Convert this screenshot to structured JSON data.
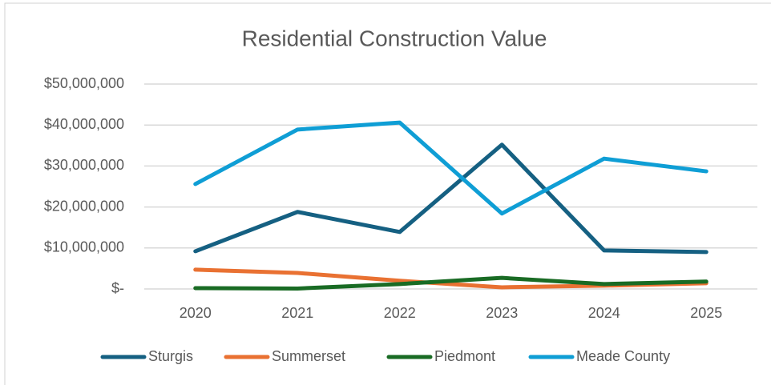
{
  "chart_data": {
    "type": "line",
    "title": "Residential Construction Value",
    "categories": [
      "2020",
      "2021",
      "2022",
      "2023",
      "2024",
      "2025"
    ],
    "series": [
      {
        "name": "Sturgis",
        "color": "#156082",
        "values": [
          9200000,
          18800000,
          13900000,
          35200000,
          9400000,
          9000000
        ]
      },
      {
        "name": "Summerset",
        "color": "#e97132",
        "values": [
          4700000,
          3900000,
          2000000,
          400000,
          800000,
          1400000
        ]
      },
      {
        "name": "Piedmont",
        "color": "#196b24",
        "values": [
          200000,
          100000,
          1200000,
          2700000,
          1200000,
          1800000
        ]
      },
      {
        "name": "Meade County",
        "color": "#0f9ed5",
        "values": [
          25600000,
          38900000,
          40600000,
          18400000,
          31800000,
          28700000
        ]
      }
    ],
    "ylim": [
      0,
      50000000
    ],
    "yticks": [
      {
        "value": 0,
        "label": "$-"
      },
      {
        "value": 10000000,
        "label": "$10,000,000"
      },
      {
        "value": 20000000,
        "label": "$20,000,000"
      },
      {
        "value": 30000000,
        "label": "$30,000,000"
      },
      {
        "value": 40000000,
        "label": "$40,000,000"
      },
      {
        "value": 50000000,
        "label": "$50,000,000"
      }
    ],
    "grid": true,
    "legend": "bottom"
  }
}
